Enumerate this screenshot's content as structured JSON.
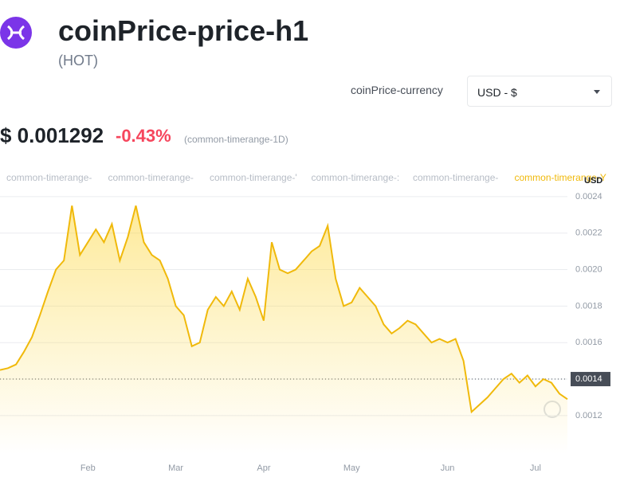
{
  "header": {
    "title": "coinPrice-price-h1",
    "symbol": "(HOT)"
  },
  "currency": {
    "label": "coinPrice-currency",
    "selected": "USD - $"
  },
  "price": {
    "value": "$ 0.001292",
    "change": "-0.43%",
    "timerange": "(common-timerange-1D)"
  },
  "tabs": [
    "common-timerange-",
    "common-timerange-",
    "common-timerange-'",
    "common-timerange-:",
    "common-timerange-",
    "common-timerange-Y"
  ],
  "chart_data": {
    "type": "area",
    "color": "#f0b90b",
    "y_unit": "USD",
    "reference_line": 0.0014,
    "categories": [
      null,
      null,
      null,
      null,
      null,
      null,
      null,
      null,
      null,
      null,
      null,
      "Feb",
      null,
      null,
      null,
      null,
      null,
      null,
      null,
      null,
      null,
      null,
      "Mar",
      null,
      null,
      null,
      null,
      null,
      null,
      null,
      null,
      null,
      null,
      "Apr",
      null,
      null,
      null,
      null,
      null,
      null,
      null,
      null,
      null,
      null,
      "May",
      null,
      null,
      null,
      null,
      null,
      null,
      null,
      null,
      null,
      null,
      null,
      "Jun",
      null,
      null,
      null,
      null,
      null,
      null,
      null,
      null,
      null,
      null,
      "Jul",
      null,
      null,
      null,
      null
    ],
    "values": [
      0.00145,
      0.00146,
      0.00148,
      0.00155,
      0.00163,
      0.00175,
      0.00188,
      0.002,
      0.00205,
      0.00235,
      0.00208,
      0.00215,
      0.00222,
      0.00215,
      0.00225,
      0.00205,
      0.00218,
      0.00235,
      0.00215,
      0.00208,
      0.00205,
      0.00195,
      0.0018,
      0.00175,
      0.00158,
      0.0016,
      0.00178,
      0.00185,
      0.0018,
      0.00188,
      0.00178,
      0.00195,
      0.00185,
      0.00172,
      0.00215,
      0.002,
      0.00198,
      0.002,
      0.00205,
      0.0021,
      0.00213,
      0.00224,
      0.00195,
      0.0018,
      0.00182,
      0.0019,
      0.00185,
      0.0018,
      0.0017,
      0.00165,
      0.00168,
      0.00172,
      0.0017,
      0.00165,
      0.0016,
      0.00162,
      0.0016,
      0.00162,
      0.0015,
      0.00122,
      0.00126,
      0.0013,
      0.00135,
      0.0014,
      0.00143,
      0.00138,
      0.00142,
      0.00136,
      0.0014,
      0.00138,
      0.00132,
      0.00129
    ],
    "ylim": [
      0.00099,
      0.00243
    ],
    "yticks": [
      0.0012,
      0.0014,
      0.0016,
      0.0018,
      {
        "value": 0.002,
        "label": "0.0020"
      },
      0.0022,
      0.0024
    ],
    "grid": true
  }
}
